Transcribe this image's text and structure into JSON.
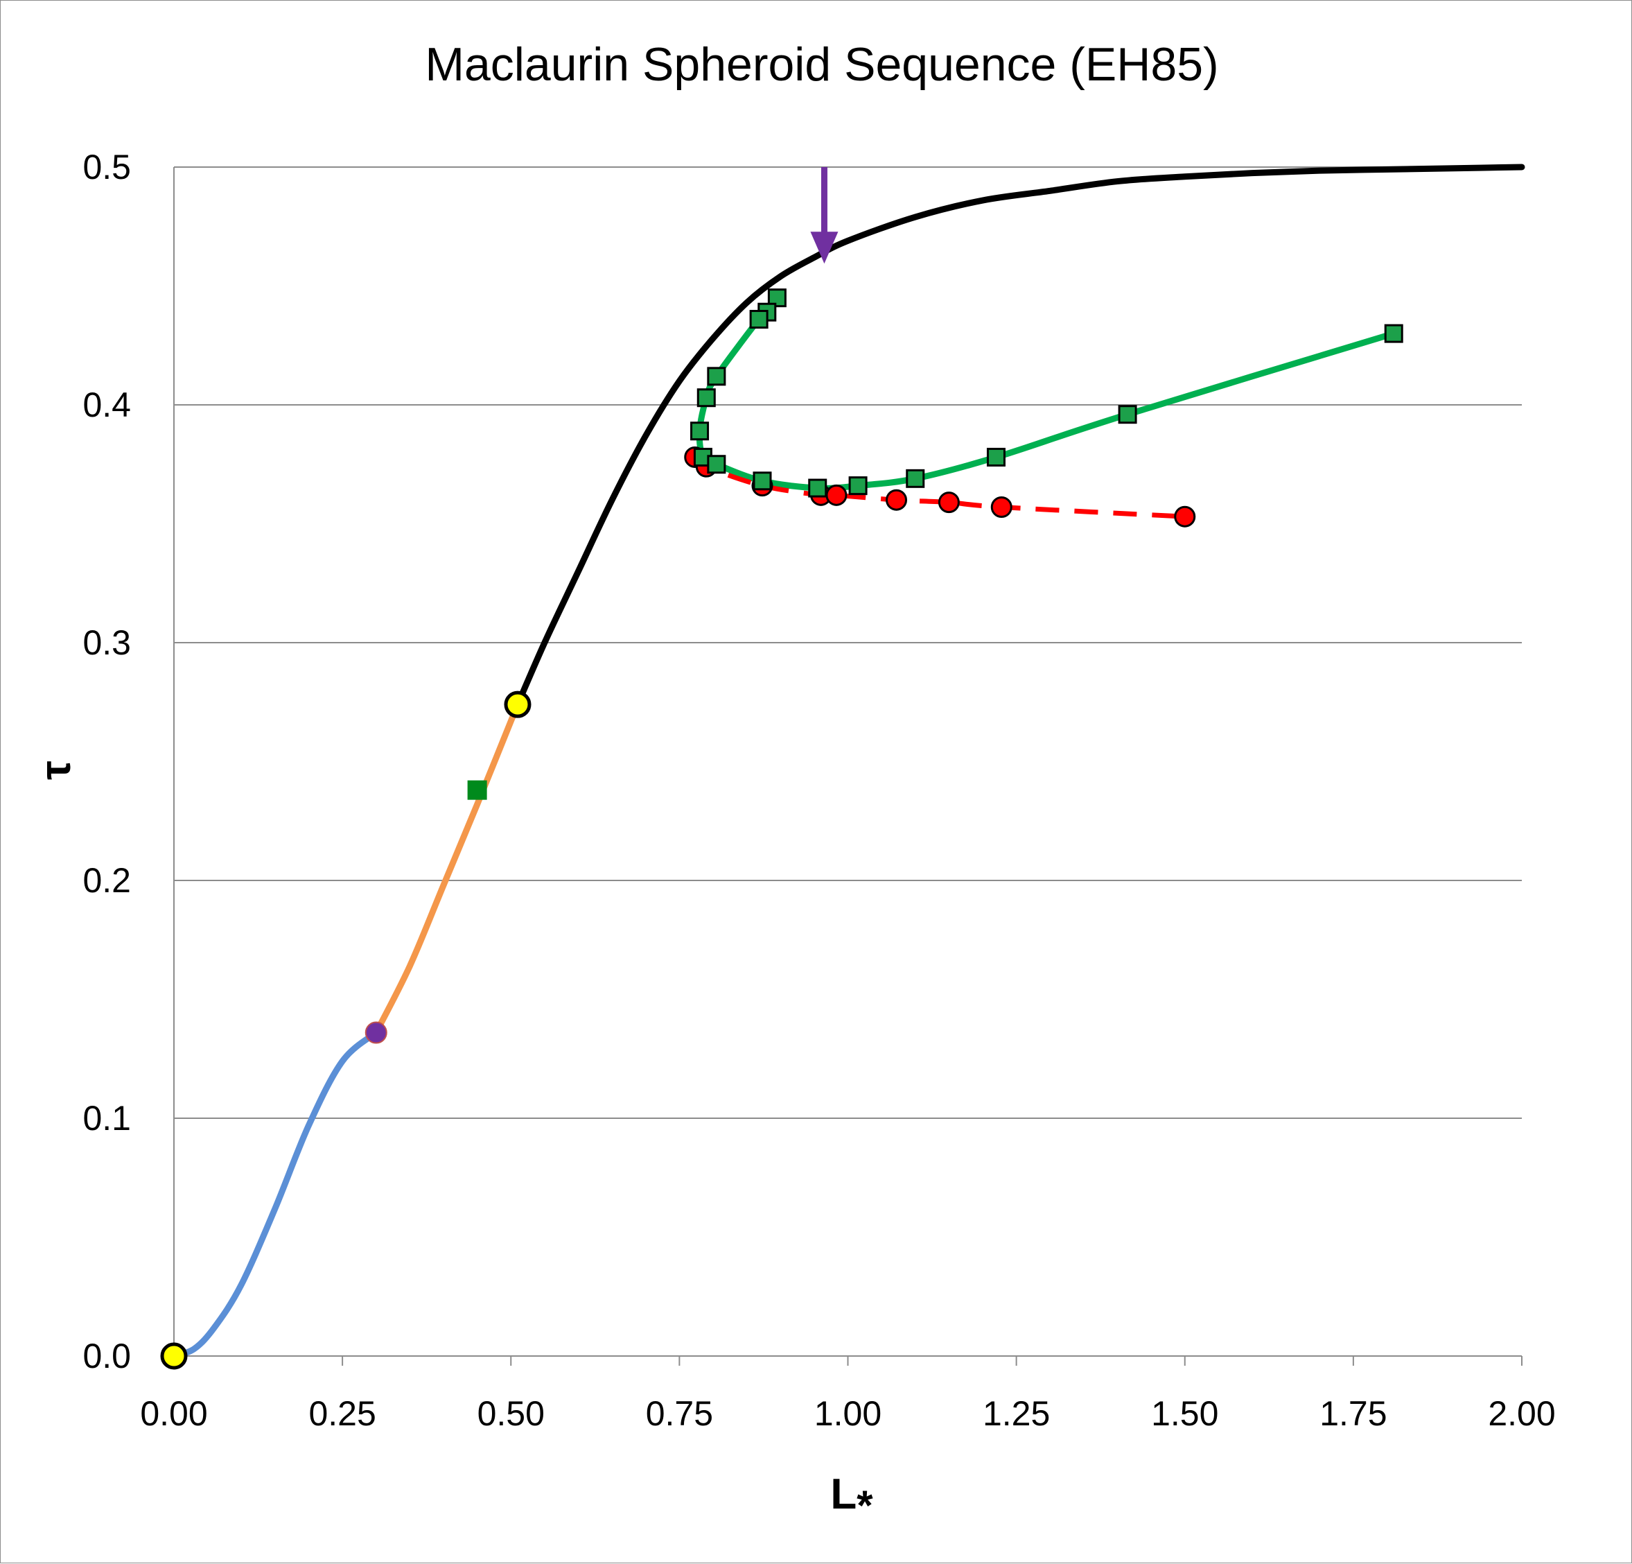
{
  "chart_data": {
    "type": "scatter",
    "title": "Maclaurin Spheroid Sequence (EH85)",
    "xlabel": "L",
    "xlabel_subscript": "*",
    "ylabel": "τ",
    "xlim": [
      0,
      2
    ],
    "ylim": [
      0,
      0.5
    ],
    "grid": "horizontal",
    "xticks": [
      0,
      0.25,
      0.5,
      0.75,
      1.0,
      1.25,
      1.5,
      1.75,
      2.0
    ],
    "xtick_labels": [
      "0.00",
      "0.25",
      "0.50",
      "0.75",
      "1.00",
      "1.25",
      "1.50",
      "1.75",
      "2.00"
    ],
    "yticks": [
      0,
      0.1,
      0.2,
      0.3,
      0.4,
      0.5
    ],
    "ytick_labels": [
      "0.0",
      "0.1",
      "0.2",
      "0.3",
      "0.4",
      "0.5"
    ],
    "series": [
      {
        "name": "maclaurin-low",
        "kind": "curve",
        "color": "#5b8fd6",
        "x": [
          0.0,
          0.03,
          0.06,
          0.1,
          0.15,
          0.2,
          0.25,
          0.3
        ],
        "y": [
          0.0,
          0.003,
          0.012,
          0.03,
          0.062,
          0.097,
          0.124,
          0.136
        ]
      },
      {
        "name": "maclaurin-mid",
        "kind": "curve",
        "color": "#f4974a",
        "x": [
          0.3,
          0.35,
          0.4,
          0.45,
          0.51
        ],
        "y": [
          0.136,
          0.164,
          0.198,
          0.232,
          0.274
        ]
      },
      {
        "name": "maclaurin-high",
        "kind": "curve",
        "color": "#000000",
        "x": [
          0.51,
          0.55,
          0.6,
          0.65,
          0.7,
          0.75,
          0.8,
          0.85,
          0.9,
          0.95,
          1.0,
          1.1,
          1.2,
          1.3,
          1.4,
          1.5,
          1.6,
          1.7,
          1.8,
          1.9,
          2.0
        ],
        "y": [
          0.274,
          0.3,
          0.33,
          0.36,
          0.387,
          0.41,
          0.428,
          0.443,
          0.454,
          0.462,
          0.469,
          0.479,
          0.486,
          0.49,
          0.494,
          0.496,
          0.4975,
          0.4985,
          0.499,
          0.4995,
          0.5
        ]
      },
      {
        "name": "green-branch",
        "kind": "curve-with-markers",
        "color": "#00b050",
        "marker": "square",
        "marker_color": "#1ca04a",
        "x": [
          0.895,
          0.88,
          0.868,
          0.805,
          0.79,
          0.78,
          0.785,
          0.805,
          0.873,
          0.955,
          1.015,
          1.1,
          1.22,
          1.415,
          1.81
        ],
        "y": [
          0.445,
          0.439,
          0.436,
          0.412,
          0.403,
          0.389,
          0.378,
          0.375,
          0.368,
          0.365,
          0.366,
          0.369,
          0.378,
          0.396,
          0.43
        ]
      },
      {
        "name": "red-branch",
        "kind": "dashed-with-markers",
        "color": "#ff0000",
        "marker": "circle",
        "x": [
          0.773,
          0.79,
          0.873,
          0.96,
          0.983,
          1.072,
          1.15,
          1.228,
          1.5
        ],
        "y": [
          0.378,
          0.374,
          0.366,
          0.362,
          0.362,
          0.36,
          0.359,
          0.357,
          0.353
        ]
      }
    ],
    "special_points": [
      {
        "name": "yellow-start-point",
        "x": 0.0,
        "y": 0.0,
        "shape": "circle",
        "color": "#ffff00"
      },
      {
        "name": "purple-transition-point",
        "x": 0.3,
        "y": 0.136,
        "shape": "circle",
        "color": "#7030a0"
      },
      {
        "name": "green-square-point",
        "x": 0.45,
        "y": 0.238,
        "shape": "square",
        "color": "#008a1c"
      },
      {
        "name": "yellow-bifurcation-point",
        "x": 0.51,
        "y": 0.274,
        "shape": "circle",
        "color": "#ffff00"
      }
    ],
    "annotations": [
      {
        "name": "purple-arrow",
        "x": 0.965,
        "y_from": 0.5,
        "y_to": 0.46,
        "color": "#7030a0"
      }
    ]
  }
}
